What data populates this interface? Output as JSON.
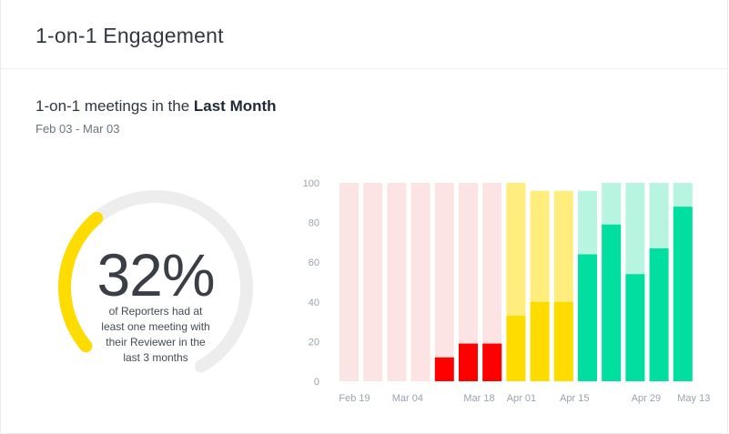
{
  "header": {
    "title": "1-on-1 Engagement"
  },
  "section": {
    "title_prefix": "1-on-1 meetings in the ",
    "title_emphasis": "Last Month",
    "date_range": "Feb 03 - Mar 03"
  },
  "gauge": {
    "value_label": "32%",
    "value_fraction": 0.32,
    "caption": "of Reporters had at least one meeting with their Reviewer in the last 3 months",
    "fill_color": "#FFDC00",
    "track_color": "#EDEDED"
  },
  "chart_data": {
    "type": "bar",
    "ylim": [
      0,
      100
    ],
    "y_ticks": [
      0,
      20,
      40,
      60,
      80,
      100
    ],
    "x_tick_labels": [
      {
        "index": 0,
        "label": "Feb 19"
      },
      {
        "index": 2,
        "label": "Mar 04"
      },
      {
        "index": 5,
        "label": "Mar 18"
      },
      {
        "index": 7,
        "label": "Apr 01"
      },
      {
        "index": 9,
        "label": "Apr 15"
      },
      {
        "index": 12,
        "label": "Apr 29"
      },
      {
        "index": 14,
        "label": "May 13"
      }
    ],
    "bars": [
      {
        "value": 0,
        "total": 100,
        "status": "low"
      },
      {
        "value": 0,
        "total": 100,
        "status": "low"
      },
      {
        "value": 0,
        "total": 100,
        "status": "low"
      },
      {
        "value": 0,
        "total": 100,
        "status": "low"
      },
      {
        "value": 12,
        "total": 100,
        "status": "low"
      },
      {
        "value": 19,
        "total": 100,
        "status": "low"
      },
      {
        "value": 19,
        "total": 100,
        "status": "low"
      },
      {
        "value": 33,
        "total": 100,
        "status": "medium"
      },
      {
        "value": 40,
        "total": 96,
        "status": "medium"
      },
      {
        "value": 40,
        "total": 96,
        "status": "medium"
      },
      {
        "value": 64,
        "total": 96,
        "status": "high"
      },
      {
        "value": 79,
        "total": 100,
        "status": "high"
      },
      {
        "value": 54,
        "total": 100,
        "status": "high"
      },
      {
        "value": 67,
        "total": 100,
        "status": "high"
      },
      {
        "value": 88,
        "total": 100,
        "status": "high"
      }
    ],
    "colors": {
      "low": {
        "fill": "#FF0000",
        "bg": "#FDE4E4"
      },
      "medium": {
        "fill": "#FFDC00",
        "bg": "#FFEE7E"
      },
      "high": {
        "fill": "#00DFA0",
        "bg": "#B8F5E0"
      }
    }
  }
}
